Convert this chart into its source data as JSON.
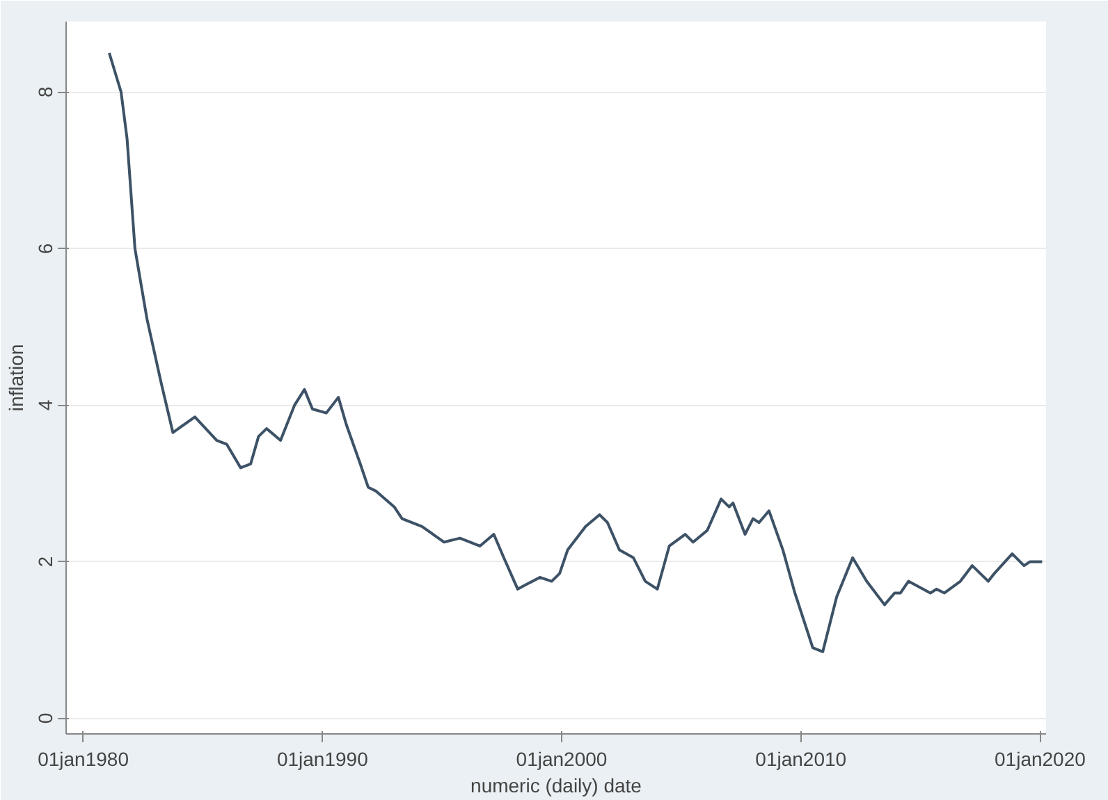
{
  "chart_data": {
    "type": "line",
    "xlabel": "numeric (daily) date",
    "ylabel": "inflation",
    "x": [
      "1981-02",
      "1981-08",
      "1981-11",
      "1982-03",
      "1982-09",
      "1983-04",
      "1983-10",
      "1984-09",
      "1985-08",
      "1986-01",
      "1986-08",
      "1987-01",
      "1987-05",
      "1987-09",
      "1988-04",
      "1988-11",
      "1989-04",
      "1989-08",
      "1990-03",
      "1990-09",
      "1991-01",
      "1991-08",
      "1991-12",
      "1992-04",
      "1993-01",
      "1993-05",
      "1994-03",
      "1995-02",
      "1995-10",
      "1996-08",
      "1997-03",
      "1997-08",
      "1998-03",
      "1999-02",
      "1999-08",
      "1999-12",
      "2000-04",
      "2001-01",
      "2001-08",
      "2001-12",
      "2002-06",
      "2003-01",
      "2003-07",
      "2004-01",
      "2004-07",
      "2005-03",
      "2005-07",
      "2006-02",
      "2006-09",
      "2007-01",
      "2007-03",
      "2007-09",
      "2008-01",
      "2008-04",
      "2008-09",
      "2009-04",
      "2009-10",
      "2010-07",
      "2010-12",
      "2011-07",
      "2012-03",
      "2012-10",
      "2013-07",
      "2013-12",
      "2014-03",
      "2014-07",
      "2015-06",
      "2015-09",
      "2016-01",
      "2016-09",
      "2017-03",
      "2017-11",
      "2018-02",
      "2018-11",
      "2019-05",
      "2019-08",
      "2020-02"
    ],
    "series": [
      {
        "color": "#3d5266",
        "values": [
          8.5,
          8.0,
          7.4,
          6.0,
          5.1,
          4.3,
          3.65,
          3.85,
          3.55,
          3.5,
          3.2,
          3.25,
          3.6,
          3.7,
          3.55,
          4.0,
          4.2,
          3.95,
          3.9,
          4.1,
          3.75,
          3.25,
          2.95,
          2.9,
          2.7,
          2.55,
          2.45,
          2.25,
          2.3,
          2.2,
          2.35,
          2.05,
          1.65,
          1.8,
          1.75,
          1.85,
          2.15,
          2.45,
          2.6,
          2.5,
          2.15,
          2.05,
          1.75,
          1.65,
          2.2,
          2.35,
          2.25,
          2.4,
          2.8,
          2.7,
          2.75,
          2.35,
          2.55,
          2.5,
          2.65,
          2.15,
          1.6,
          0.9,
          0.85,
          1.55,
          2.05,
          1.75,
          1.45,
          1.6,
          1.6,
          1.75,
          1.6,
          1.65,
          1.6,
          1.75,
          1.95,
          1.75,
          1.85,
          2.1,
          1.95,
          2.0,
          2.0
        ]
      }
    ],
    "xlim": [
      "1979-04-15",
      "2020-04-01"
    ],
    "ylim": [
      -0.2,
      8.9
    ],
    "xticks": [
      {
        "value": "1980-01-01",
        "label": "01jan1980"
      },
      {
        "value": "1990-01-01",
        "label": "01jan1990"
      },
      {
        "value": "2000-01-01",
        "label": "01jan2000"
      },
      {
        "value": "2010-01-01",
        "label": "01jan2010"
      },
      {
        "value": "2020-01-01",
        "label": "01jan2020"
      }
    ],
    "yticks": [
      0,
      2,
      4,
      6,
      8
    ],
    "grid": "y",
    "line_style": "solid"
  }
}
